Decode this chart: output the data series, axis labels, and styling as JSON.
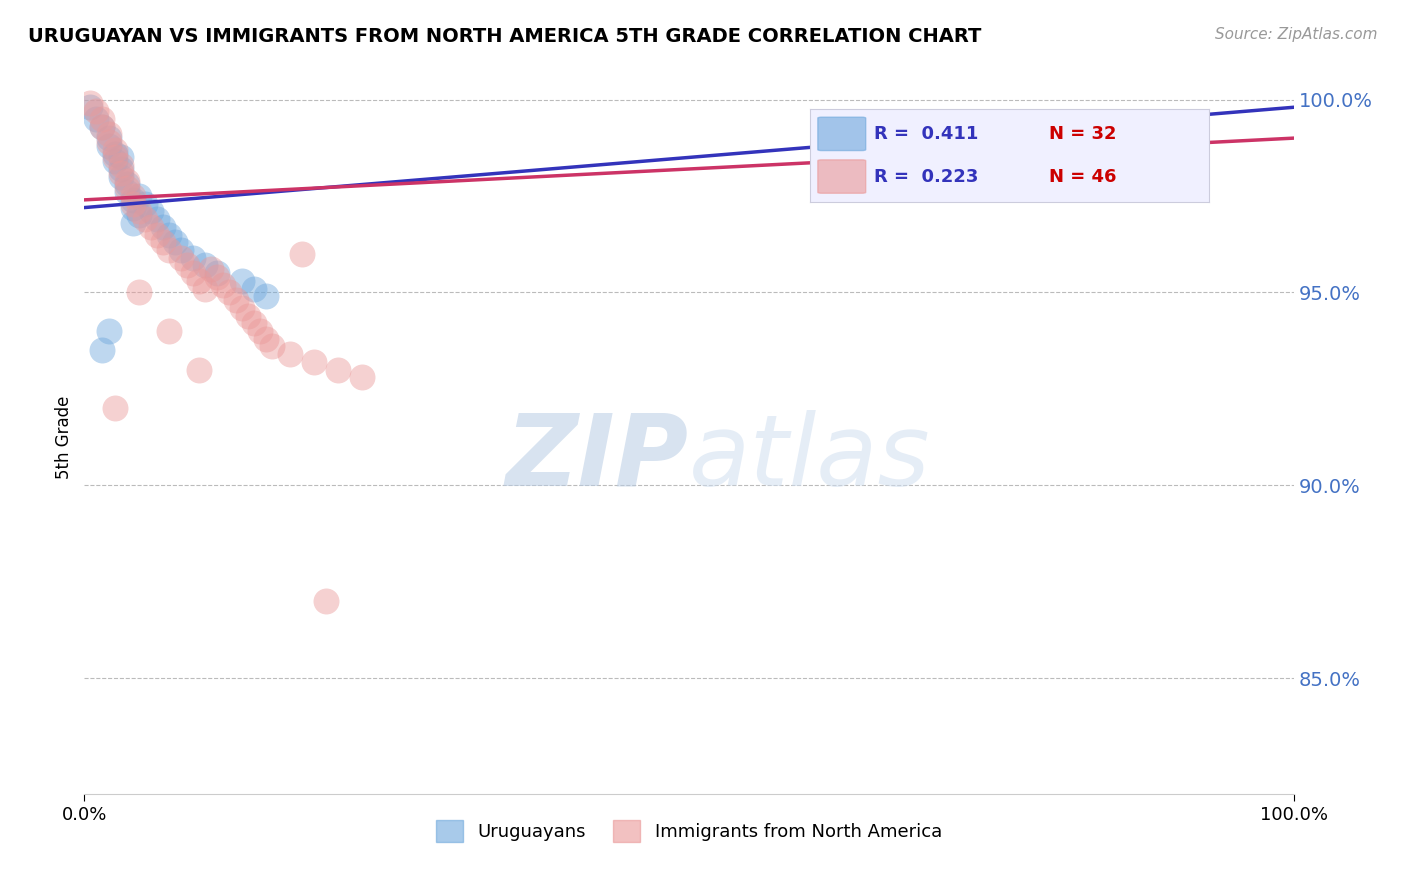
{
  "title": "URUGUAYAN VS IMMIGRANTS FROM NORTH AMERICA 5TH GRADE CORRELATION CHART",
  "source_text": "Source: ZipAtlas.com",
  "ylabel": "5th Grade",
  "r_blue": 0.411,
  "n_blue": 32,
  "r_pink": 0.223,
  "n_pink": 46,
  "blue_color": "#6fa8dc",
  "pink_color": "#ea9999",
  "trend_blue": "#3333bb",
  "trend_pink": "#cc3366",
  "legend_uruguayans": "Uruguayans",
  "legend_immigrants": "Immigrants from North America",
  "xlim": [
    0.0,
    1.0
  ],
  "ylim": [
    0.82,
    1.005
  ],
  "yticks": [
    0.85,
    0.9,
    0.95,
    1.0
  ],
  "ytick_labels": [
    "85.0%",
    "90.0%",
    "95.0%",
    "100.0%"
  ],
  "watermark_zip": "ZIP",
  "watermark_atlas": "atlas",
  "blue_x": [
    0.005,
    0.01,
    0.015,
    0.02,
    0.02,
    0.025,
    0.025,
    0.03,
    0.03,
    0.035,
    0.035,
    0.04,
    0.04,
    0.045,
    0.045,
    0.05,
    0.055,
    0.06,
    0.065,
    0.07,
    0.075,
    0.08,
    0.09,
    0.1,
    0.11,
    0.13,
    0.14,
    0.15,
    0.03,
    0.04,
    0.02,
    0.015
  ],
  "blue_y": [
    0.998,
    0.995,
    0.993,
    0.99,
    0.988,
    0.986,
    0.984,
    0.982,
    0.98,
    0.978,
    0.976,
    0.974,
    0.972,
    0.97,
    0.975,
    0.973,
    0.971,
    0.969,
    0.967,
    0.965,
    0.963,
    0.961,
    0.959,
    0.957,
    0.955,
    0.953,
    0.951,
    0.949,
    0.985,
    0.968,
    0.94,
    0.935
  ],
  "pink_x": [
    0.005,
    0.01,
    0.015,
    0.015,
    0.02,
    0.02,
    0.025,
    0.025,
    0.03,
    0.03,
    0.035,
    0.035,
    0.04,
    0.04,
    0.045,
    0.05,
    0.055,
    0.06,
    0.065,
    0.07,
    0.08,
    0.085,
    0.09,
    0.095,
    0.1,
    0.105,
    0.11,
    0.115,
    0.12,
    0.125,
    0.13,
    0.135,
    0.14,
    0.145,
    0.15,
    0.155,
    0.17,
    0.19,
    0.21,
    0.23,
    0.18,
    0.07,
    0.025,
    0.045,
    0.095,
    0.2
  ],
  "pink_y": [
    0.999,
    0.997,
    0.995,
    0.993,
    0.991,
    0.989,
    0.987,
    0.985,
    0.983,
    0.981,
    0.979,
    0.977,
    0.975,
    0.973,
    0.971,
    0.969,
    0.967,
    0.965,
    0.963,
    0.961,
    0.959,
    0.957,
    0.955,
    0.953,
    0.951,
    0.956,
    0.954,
    0.952,
    0.95,
    0.948,
    0.946,
    0.944,
    0.942,
    0.94,
    0.938,
    0.936,
    0.934,
    0.932,
    0.93,
    0.928,
    0.96,
    0.94,
    0.92,
    0.95,
    0.93,
    0.87
  ]
}
